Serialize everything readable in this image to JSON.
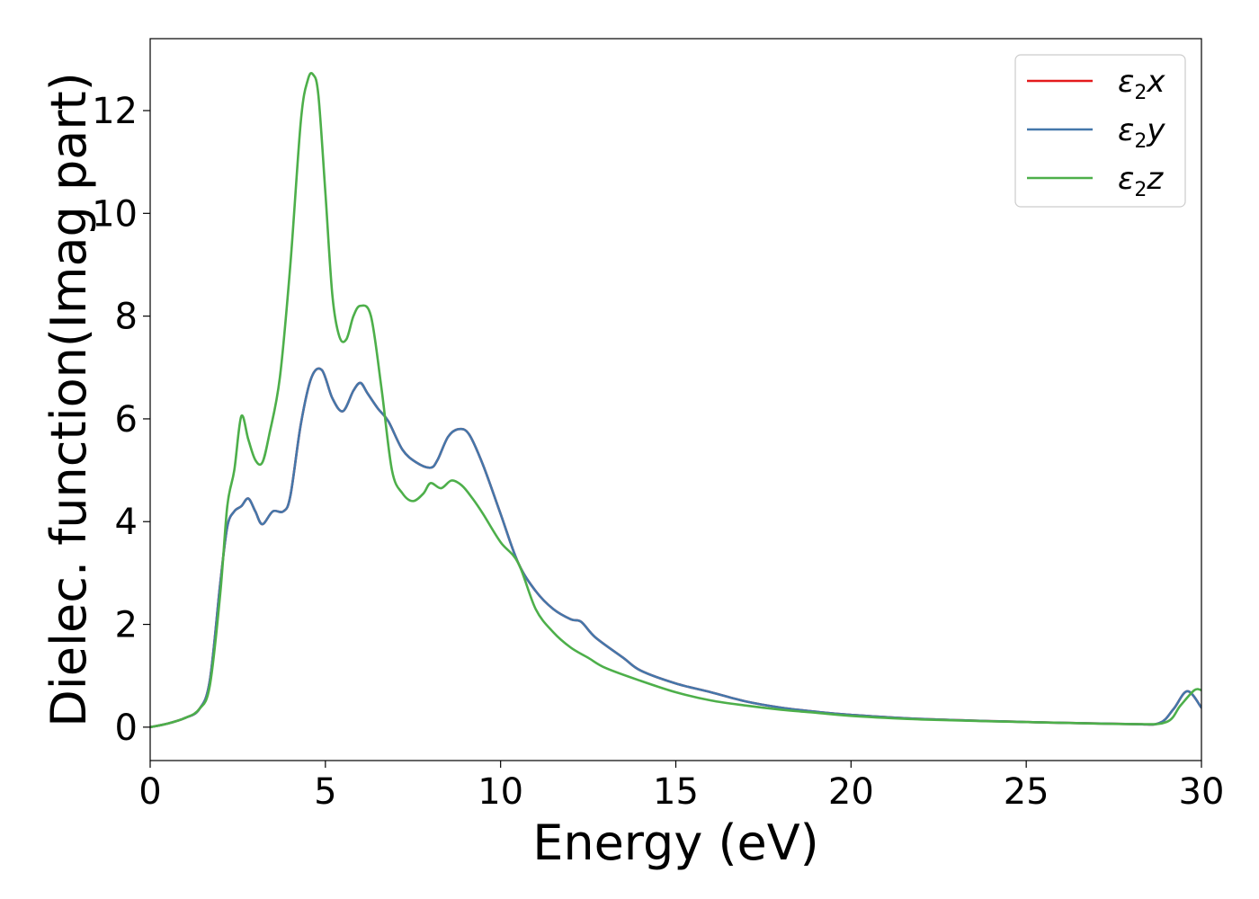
{
  "chart_data": {
    "type": "line",
    "title": "",
    "xlabel": "Energy (eV)",
    "ylabel": "Dielec. function(Imag part)",
    "xlim": [
      0,
      30
    ],
    "ylim": [
      -0.65,
      13.4
    ],
    "xticks": [
      0,
      5,
      10,
      15,
      20,
      25,
      30
    ],
    "yticks": [
      0,
      2,
      4,
      6,
      8,
      10,
      12
    ],
    "xtick_labels": [
      "0",
      "5",
      "10",
      "15",
      "20",
      "25",
      "30"
    ],
    "ytick_labels": [
      "0",
      "2",
      "4",
      "6",
      "8",
      "10",
      "12"
    ],
    "grid": false,
    "legend_position": "top-right",
    "series": [
      {
        "name": "ε2x",
        "name_base": "ε",
        "name_sub": "2",
        "name_var": "x",
        "color": "#e41a1c",
        "x": [
          0,
          0.5,
          1.0,
          1.4,
          1.7,
          2.0,
          2.2,
          2.4,
          2.6,
          2.8,
          3.0,
          3.2,
          3.5,
          3.8,
          4.0,
          4.3,
          4.6,
          4.9,
          5.2,
          5.5,
          5.8,
          6.0,
          6.2,
          6.5,
          6.8,
          7.2,
          7.6,
          8.0,
          8.2,
          8.5,
          8.8,
          9.1,
          9.5,
          10.0,
          10.5,
          11.0,
          11.5,
          12.0,
          12.3,
          12.7,
          13.5,
          14.0,
          15.0,
          16.0,
          17.0,
          18.0,
          19.0,
          20.0,
          22.0,
          25.0,
          28.0,
          28.8,
          29.2,
          29.6,
          30.0
        ],
        "y": [
          0,
          0.07,
          0.18,
          0.35,
          0.9,
          2.8,
          3.9,
          4.2,
          4.3,
          4.45,
          4.2,
          3.95,
          4.2,
          4.2,
          4.5,
          5.9,
          6.8,
          6.95,
          6.4,
          6.15,
          6.55,
          6.7,
          6.5,
          6.2,
          5.95,
          5.4,
          5.15,
          5.05,
          5.2,
          5.65,
          5.8,
          5.7,
          5.1,
          4.15,
          3.2,
          2.65,
          2.3,
          2.1,
          2.05,
          1.75,
          1.35,
          1.1,
          0.85,
          0.68,
          0.5,
          0.38,
          0.3,
          0.24,
          0.16,
          0.1,
          0.06,
          0.08,
          0.35,
          0.7,
          0.38
        ]
      },
      {
        "name": "ε2y",
        "name_base": "ε",
        "name_sub": "2",
        "name_var": "y",
        "color": "#4477aa",
        "x": [
          0,
          0.5,
          1.0,
          1.4,
          1.7,
          2.0,
          2.2,
          2.4,
          2.6,
          2.8,
          3.0,
          3.2,
          3.5,
          3.8,
          4.0,
          4.3,
          4.6,
          4.9,
          5.2,
          5.5,
          5.8,
          6.0,
          6.2,
          6.5,
          6.8,
          7.2,
          7.6,
          8.0,
          8.2,
          8.5,
          8.8,
          9.1,
          9.5,
          10.0,
          10.5,
          11.0,
          11.5,
          12.0,
          12.3,
          12.7,
          13.5,
          14.0,
          15.0,
          16.0,
          17.0,
          18.0,
          19.0,
          20.0,
          22.0,
          25.0,
          28.0,
          28.8,
          29.2,
          29.6,
          30.0
        ],
        "y": [
          0,
          0.07,
          0.18,
          0.35,
          0.9,
          2.8,
          3.9,
          4.2,
          4.3,
          4.45,
          4.2,
          3.95,
          4.2,
          4.2,
          4.5,
          5.9,
          6.8,
          6.95,
          6.4,
          6.15,
          6.55,
          6.7,
          6.5,
          6.2,
          5.95,
          5.4,
          5.15,
          5.05,
          5.2,
          5.65,
          5.8,
          5.7,
          5.1,
          4.15,
          3.2,
          2.65,
          2.3,
          2.1,
          2.05,
          1.75,
          1.35,
          1.1,
          0.85,
          0.68,
          0.5,
          0.38,
          0.3,
          0.24,
          0.16,
          0.1,
          0.06,
          0.08,
          0.35,
          0.7,
          0.38
        ]
      },
      {
        "name": "ε2z",
        "name_base": "ε",
        "name_sub": "2",
        "name_var": "z",
        "color": "#4daf4a",
        "x": [
          0,
          0.5,
          1.0,
          1.4,
          1.7,
          2.0,
          2.2,
          2.4,
          2.6,
          2.8,
          3.0,
          3.2,
          3.4,
          3.7,
          4.0,
          4.3,
          4.5,
          4.65,
          4.8,
          5.0,
          5.2,
          5.4,
          5.6,
          5.8,
          6.0,
          6.3,
          6.6,
          6.9,
          7.2,
          7.5,
          7.8,
          8.0,
          8.3,
          8.6,
          8.9,
          9.2,
          9.5,
          10.0,
          10.5,
          11.0,
          11.5,
          12.0,
          12.5,
          13.0,
          14.0,
          15.0,
          16.0,
          17.0,
          18.0,
          19.0,
          20.0,
          22.0,
          25.0,
          28.0,
          29.0,
          29.4,
          29.8,
          30.0
        ],
        "y": [
          0,
          0.07,
          0.18,
          0.35,
          0.8,
          2.6,
          4.3,
          5.0,
          6.05,
          5.6,
          5.2,
          5.15,
          5.7,
          6.8,
          9.0,
          11.8,
          12.6,
          12.7,
          12.3,
          10.4,
          8.4,
          7.6,
          7.55,
          8.0,
          8.2,
          8.0,
          6.6,
          5.0,
          4.55,
          4.4,
          4.55,
          4.75,
          4.65,
          4.8,
          4.7,
          4.45,
          4.15,
          3.6,
          3.2,
          2.3,
          1.85,
          1.55,
          1.35,
          1.15,
          0.9,
          0.68,
          0.52,
          0.42,
          0.34,
          0.28,
          0.22,
          0.15,
          0.1,
          0.06,
          0.1,
          0.42,
          0.72,
          0.72
        ]
      }
    ]
  }
}
